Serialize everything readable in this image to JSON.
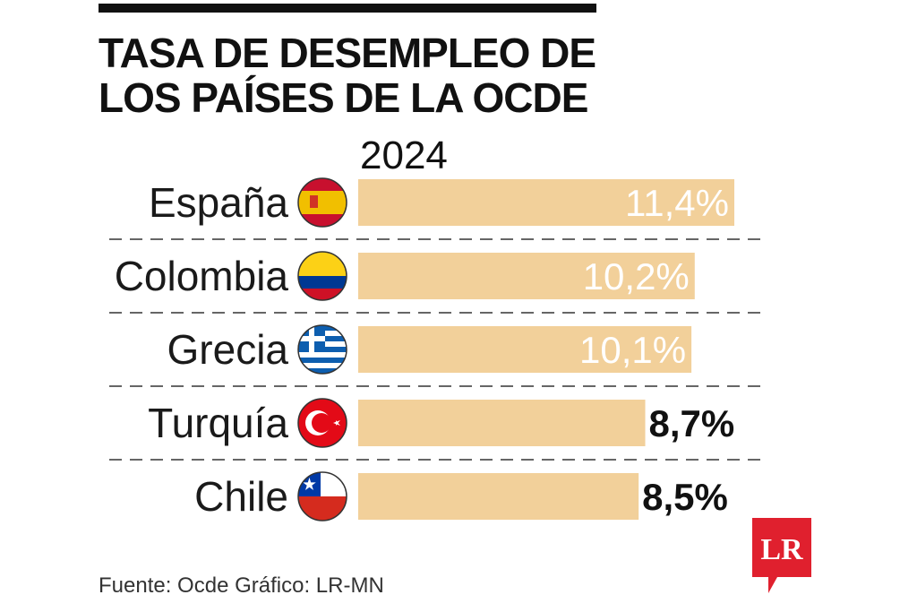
{
  "title": "TASA DE DESEMPLEO DE LOS PAÍSES DE LA OCDE",
  "year": "2024",
  "source": "Fuente: Ocde  Gráfico: LR-MN",
  "logo_text": "LR",
  "colors": {
    "bar": "#f2d09a",
    "rule": "#111111",
    "logo": "#e0202e"
  },
  "chart_data": {
    "type": "bar",
    "orientation": "horizontal",
    "title": "TASA DE DESEMPLEO DE LOS PAÍSES DE LA OCDE",
    "subtitle": "2024",
    "categories": [
      "España",
      "Colombia",
      "Grecia",
      "Turquía",
      "Chile"
    ],
    "values": [
      11.4,
      10.2,
      10.1,
      8.7,
      8.5
    ],
    "value_labels": [
      "11,4%",
      "10,2%",
      "10,1%",
      "8,7%",
      "8,5%"
    ],
    "flags": [
      "spain-flag-icon",
      "colombia-flag-icon",
      "greece-flag-icon",
      "turkey-flag-icon",
      "chile-flag-icon"
    ],
    "unit": "%"
  }
}
